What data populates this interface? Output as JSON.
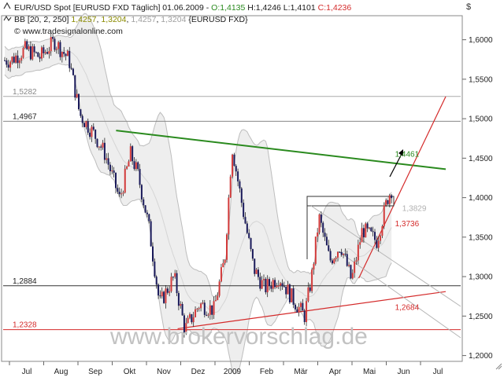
{
  "header": {
    "line1_main": "EUR/USD Spot [EURUSD FXD  Täglich] 01.06.2009 - ",
    "line1_open": "O:1,4135",
    "line1_hl": " H:1,4246 L:1,4101 ",
    "line1_close": "C:1,4236",
    "line2_label": "BB [20, 2, 250] ",
    "line2_v1": "1,4257",
    "line2_v2": "1,3204",
    "line2_v3": "1,4257",
    "line2_v4": "1,3204",
    "line2_sym": "{EURUSD FXD}",
    "line3": "© www.tradesignalonline.com",
    "currency": "$"
  },
  "watermark": "www.brokervorschlag.de",
  "colors": {
    "green_line": "#2a8a1e",
    "red_line": "#d42a2a",
    "candle_up": "#d23a3a",
    "candle_down": "#1a1a5a",
    "band": "#c8c8c8",
    "open_text": "#2a8a1e",
    "close_text": "#d42a2a",
    "bb_value": "#8a8a00"
  },
  "chart_data": {
    "type": "candlestick",
    "title": "EUR/USD Spot [EURUSD FXD  Täglich] 01.06.2009",
    "xlabel": "",
    "ylabel": "$",
    "x_ticks": [
      "Jul",
      "Aug",
      "Sep",
      "Okt",
      "Nov",
      "Dez",
      "2009",
      "Feb",
      "Mär",
      "Apr",
      "Mai",
      "Jun",
      "Jul"
    ],
    "y_ticks": [
      "1,2000",
      "1,2500",
      "1,3000",
      "1,3500",
      "1,4000",
      "1,4500",
      "1,5000",
      "1,5500",
      "1,6000"
    ],
    "ylim": [
      1.18,
      1.625
    ],
    "grid": false,
    "last_bar": {
      "open": 1.4135,
      "high": 1.4246,
      "low": 1.4101,
      "close": 1.4236
    },
    "bollinger": {
      "period": 20,
      "deviations": 2,
      "upper": 1.4257,
      "lower": 1.3204
    },
    "price_path": [
      [
        0,
        1.574
      ],
      [
        0.4,
        1.588
      ],
      [
        0.8,
        1.578
      ],
      [
        1.2,
        1.598
      ],
      [
        1.6,
        1.575
      ],
      [
        1.9,
        1.505
      ],
      [
        2.3,
        1.48
      ],
      [
        2.6,
        1.455
      ],
      [
        3.0,
        1.398
      ],
      [
        3.3,
        1.455
      ],
      [
        3.5,
        1.43
      ],
      [
        3.8,
        1.365
      ],
      [
        4.1,
        1.265
      ],
      [
        4.5,
        1.3
      ],
      [
        4.8,
        1.233
      ],
      [
        5.2,
        1.265
      ],
      [
        5.6,
        1.258
      ],
      [
        5.9,
        1.323
      ],
      [
        6.1,
        1.465
      ],
      [
        6.4,
        1.385
      ],
      [
        6.7,
        1.31
      ],
      [
        7.0,
        1.285
      ],
      [
        7.4,
        1.3
      ],
      [
        7.8,
        1.27
      ],
      [
        8.1,
        1.25
      ],
      [
        8.3,
        1.3
      ],
      [
        8.5,
        1.375
      ],
      [
        8.8,
        1.32
      ],
      [
        9.1,
        1.34
      ],
      [
        9.4,
        1.295
      ],
      [
        9.7,
        1.36
      ],
      [
        10.1,
        1.345
      ],
      [
        10.4,
        1.4
      ],
      [
        10.6,
        1.42
      ]
    ],
    "horizontal_lines": [
      {
        "label": "1,5282",
        "value": 1.5282,
        "color": "#aaaaaa"
      },
      {
        "label": "1,4967",
        "value": 1.4967,
        "color": "#888888"
      },
      {
        "label": "1,2884",
        "value": 1.2884,
        "color": "#333333"
      },
      {
        "label": "1,2328",
        "value": 1.2328,
        "color": "#d42a2a"
      }
    ],
    "trendlines": [
      {
        "label": "1,4461",
        "color": "green",
        "from": [
          2.9,
          1.485
        ],
        "to": [
          12.0,
          1.436
        ]
      },
      {
        "label": "1,2684",
        "color": "red",
        "from": [
          4.6,
          1.234
        ],
        "to": [
          12.0,
          1.281
        ]
      },
      {
        "label": "",
        "color": "red",
        "from": [
          9.6,
          1.298
        ],
        "to": [
          12.0,
          1.528
        ]
      }
    ],
    "annotations": [
      {
        "text": "1,4461",
        "x": 10.6,
        "y": 1.452,
        "color": "green"
      },
      {
        "text": "1,3736",
        "x": 10.6,
        "y": 1.364,
        "color": "red"
      },
      {
        "text": "1,2684",
        "x": 10.6,
        "y": 1.258,
        "color": "red"
      },
      {
        "text": "1,3829",
        "x": 10.8,
        "y": 1.383,
        "color": "gray"
      }
    ]
  }
}
